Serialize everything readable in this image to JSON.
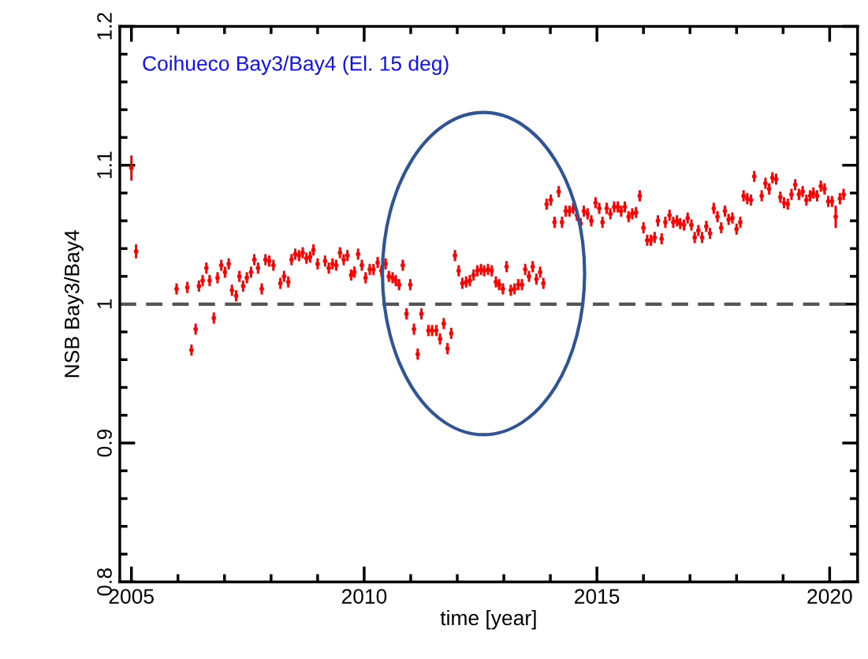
{
  "chart_data": {
    "type": "scatter",
    "xlabel": "time [year]",
    "ylabel": "NSB Bay3/Bay4",
    "annotations": [
      "Coihueco Bay3/Bay4 (El. 15 deg)"
    ],
    "xlim": [
      2004.75,
      2020.6
    ],
    "xticks": [
      2005,
      2010,
      2015,
      2020
    ],
    "ylim": [
      0.8,
      1.2
    ],
    "yticks": [
      0.8,
      0.9,
      1,
      1.1,
      1.2
    ],
    "marker": "circle",
    "ref_lines": [
      {
        "axis": "y",
        "value": 1,
        "color": "#555555",
        "line_style": "dashed"
      }
    ],
    "series": [
      {
        "color": "#ff0000",
        "x": [
          2005.0,
          2005.1,
          2005.97,
          2006.2,
          2006.29,
          2006.38,
          2006.45,
          2006.53,
          2006.61,
          2006.68,
          2006.77,
          2006.85,
          2006.93,
          2007.01,
          2007.09,
          2007.16,
          2007.25,
          2007.32,
          2007.4,
          2007.48,
          2007.57,
          2007.64,
          2007.72,
          2007.8,
          2007.88,
          2007.96,
          2008.05,
          2008.2,
          2008.28,
          2008.37,
          2008.44,
          2008.52,
          2008.6,
          2008.68,
          2008.76,
          2008.84,
          2008.91,
          2009.0,
          2009.16,
          2009.24,
          2009.32,
          2009.4,
          2009.48,
          2009.56,
          2009.64,
          2009.72,
          2009.79,
          2009.87,
          2009.95,
          2010.03,
          2010.12,
          2010.2,
          2010.29,
          2010.37,
          2010.46,
          2010.53,
          2010.61,
          2010.68,
          2010.75,
          2010.83,
          2010.91,
          2010.99,
          2011.07,
          2011.15,
          2011.23,
          2011.38,
          2011.46,
          2011.55,
          2011.63,
          2011.71,
          2011.79,
          2011.87,
          2011.95,
          2012.03,
          2012.11,
          2012.19,
          2012.27,
          2012.35,
          2012.43,
          2012.51,
          2012.58,
          2012.66,
          2012.74,
          2012.83,
          2012.9,
          2012.98,
          2013.06,
          2013.15,
          2013.23,
          2013.31,
          2013.39,
          2013.46,
          2013.54,
          2013.62,
          2013.7,
          2013.78,
          2013.85,
          2013.92,
          2014.01,
          2014.09,
          2014.18,
          2014.25,
          2014.33,
          2014.41,
          2014.49,
          2014.57,
          2014.65,
          2014.72,
          2014.8,
          2014.88,
          2014.97,
          2015.05,
          2015.12,
          2015.21,
          2015.29,
          2015.37,
          2015.45,
          2015.52,
          2015.6,
          2015.68,
          2015.76,
          2015.84,
          2015.92,
          2016.0,
          2016.08,
          2016.16,
          2016.24,
          2016.31,
          2016.39,
          2016.47,
          2016.56,
          2016.64,
          2016.72,
          2016.79,
          2016.87,
          2016.95,
          2017.03,
          2017.1,
          2017.18,
          2017.26,
          2017.35,
          2017.43,
          2017.51,
          2017.59,
          2017.67,
          2017.75,
          2017.83,
          2017.91,
          2018.0,
          2018.08,
          2018.15,
          2018.23,
          2018.31,
          2018.38,
          2018.54,
          2018.62,
          2018.7,
          2018.77,
          2018.85,
          2018.94,
          2019.02,
          2019.1,
          2019.18,
          2019.26,
          2019.34,
          2019.42,
          2019.5,
          2019.58,
          2019.65,
          2019.73,
          2019.81,
          2019.89,
          2019.97,
          2020.05,
          2020.13,
          2020.22,
          2020.3
        ],
        "values": [
          1.098,
          1.038,
          1.011,
          1.012,
          0.967,
          0.982,
          1.013,
          1.017,
          1.026,
          1.017,
          0.99,
          1.019,
          1.028,
          1.023,
          1.029,
          1.01,
          1.006,
          1.02,
          1.013,
          1.019,
          1.023,
          1.032,
          1.026,
          1.011,
          1.032,
          1.031,
          1.028,
          1.015,
          1.02,
          1.016,
          1.032,
          1.036,
          1.035,
          1.037,
          1.033,
          1.034,
          1.039,
          1.029,
          1.031,
          1.026,
          1.029,
          1.028,
          1.037,
          1.032,
          1.035,
          1.021,
          1.023,
          1.036,
          1.028,
          1.019,
          1.025,
          1.025,
          1.03,
          1.024,
          1.029,
          1.02,
          1.019,
          1.017,
          1.014,
          1.028,
          0.993,
          1.014,
          0.982,
          0.964,
          0.993,
          0.981,
          0.981,
          0.981,
          0.975,
          0.986,
          0.968,
          0.979,
          1.035,
          1.024,
          1.015,
          1.016,
          1.017,
          1.021,
          1.024,
          1.025,
          1.024,
          1.025,
          1.024,
          1.016,
          1.014,
          1.011,
          1.027,
          1.01,
          1.011,
          1.014,
          1.014,
          1.025,
          1.02,
          1.027,
          1.018,
          1.023,
          1.015,
          1.072,
          1.075,
          1.059,
          1.081,
          1.059,
          1.067,
          1.067,
          1.069,
          1.064,
          1.058,
          1.067,
          1.065,
          1.06,
          1.073,
          1.069,
          1.059,
          1.069,
          1.065,
          1.07,
          1.07,
          1.067,
          1.07,
          1.063,
          1.065,
          1.066,
          1.078,
          1.055,
          1.046,
          1.046,
          1.048,
          1.06,
          1.047,
          1.059,
          1.064,
          1.059,
          1.06,
          1.058,
          1.057,
          1.062,
          1.057,
          1.048,
          1.053,
          1.048,
          1.056,
          1.051,
          1.069,
          1.063,
          1.055,
          1.067,
          1.061,
          1.062,
          1.054,
          1.059,
          1.078,
          1.076,
          1.075,
          1.092,
          1.078,
          1.087,
          1.083,
          1.091,
          1.09,
          1.077,
          1.073,
          1.072,
          1.079,
          1.086,
          1.079,
          1.081,
          1.075,
          1.078,
          1.08,
          1.078,
          1.085,
          1.083,
          1.074,
          1.074,
          1.063,
          1.076,
          1.079
        ],
        "errors": [
          0.009,
          0.005,
          0.004,
          0.004,
          0.004,
          0.004,
          0.004,
          0.004,
          0.004,
          0.004,
          0.004,
          0.004,
          0.004,
          0.004,
          0.004,
          0.004,
          0.004,
          0.004,
          0.004,
          0.004,
          0.004,
          0.004,
          0.004,
          0.004,
          0.004,
          0.004,
          0.004,
          0.004,
          0.004,
          0.004,
          0.004,
          0.004,
          0.004,
          0.004,
          0.004,
          0.004,
          0.004,
          0.004,
          0.004,
          0.004,
          0.004,
          0.004,
          0.004,
          0.004,
          0.004,
          0.004,
          0.004,
          0.004,
          0.004,
          0.004,
          0.004,
          0.004,
          0.004,
          0.004,
          0.004,
          0.004,
          0.004,
          0.004,
          0.004,
          0.004,
          0.004,
          0.004,
          0.004,
          0.004,
          0.004,
          0.004,
          0.004,
          0.004,
          0.004,
          0.004,
          0.004,
          0.004,
          0.004,
          0.004,
          0.004,
          0.004,
          0.004,
          0.004,
          0.004,
          0.004,
          0.004,
          0.004,
          0.004,
          0.004,
          0.004,
          0.004,
          0.004,
          0.004,
          0.004,
          0.004,
          0.004,
          0.004,
          0.004,
          0.004,
          0.004,
          0.004,
          0.004,
          0.004,
          0.004,
          0.004,
          0.004,
          0.004,
          0.004,
          0.004,
          0.004,
          0.004,
          0.004,
          0.004,
          0.004,
          0.004,
          0.004,
          0.004,
          0.004,
          0.004,
          0.004,
          0.004,
          0.004,
          0.004,
          0.004,
          0.004,
          0.004,
          0.004,
          0.004,
          0.004,
          0.004,
          0.004,
          0.004,
          0.004,
          0.004,
          0.004,
          0.004,
          0.004,
          0.004,
          0.004,
          0.004,
          0.004,
          0.004,
          0.004,
          0.004,
          0.004,
          0.004,
          0.004,
          0.004,
          0.004,
          0.004,
          0.004,
          0.004,
          0.004,
          0.004,
          0.004,
          0.004,
          0.004,
          0.004,
          0.004,
          0.004,
          0.004,
          0.004,
          0.004,
          0.004,
          0.004,
          0.004,
          0.004,
          0.004,
          0.004,
          0.004,
          0.004,
          0.004,
          0.004,
          0.004,
          0.004,
          0.004,
          0.004,
          0.004,
          0.004,
          0.008,
          0.004,
          0.004
        ]
      }
    ]
  }
}
